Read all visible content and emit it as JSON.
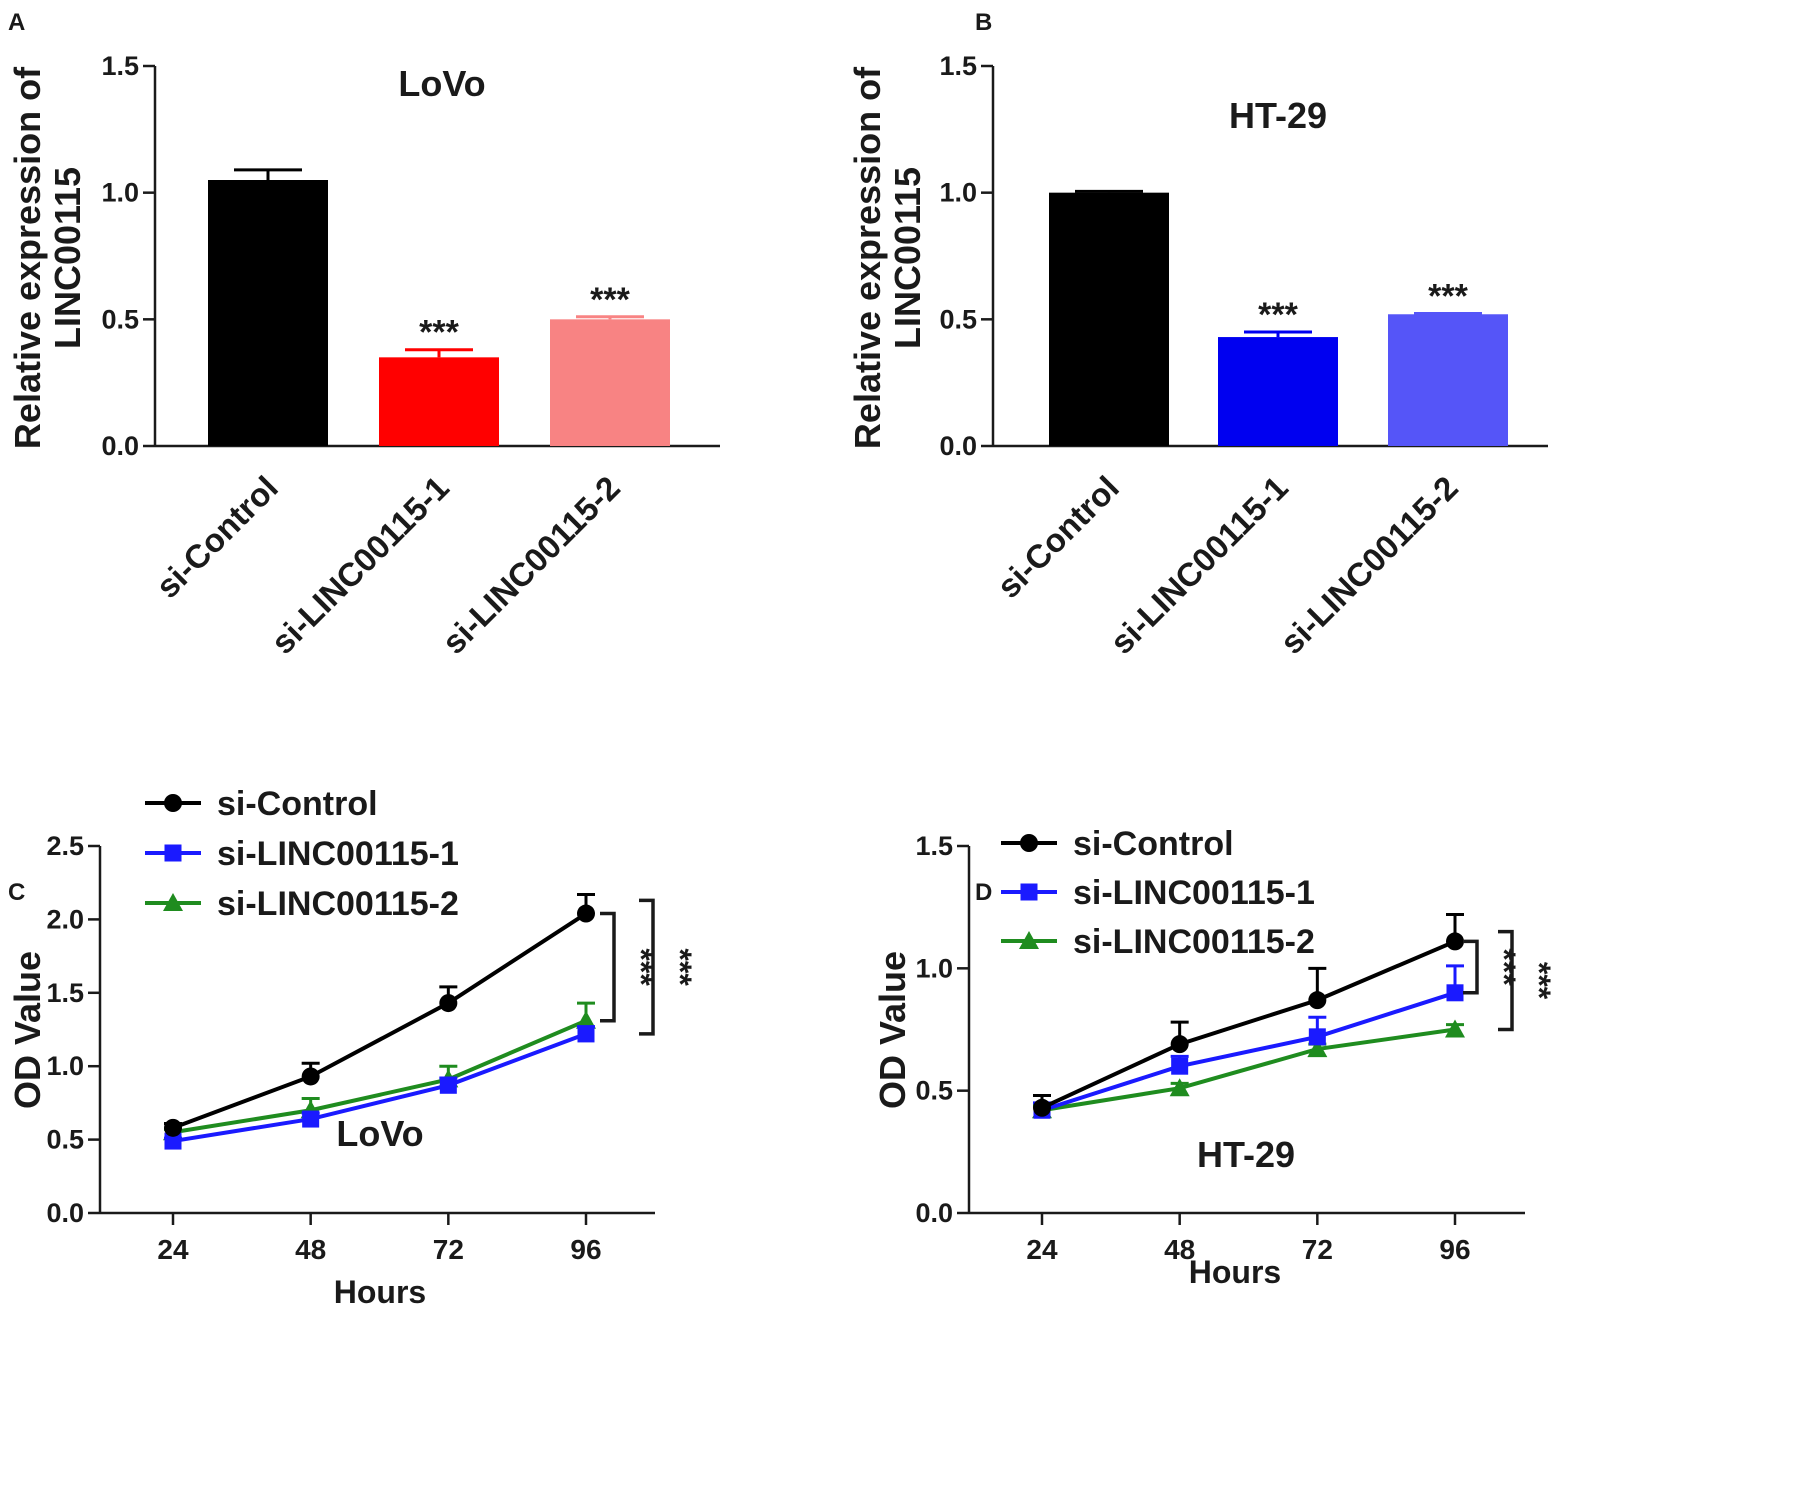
{
  "chart_data": [
    {
      "panel": "A",
      "type": "bar",
      "title": "LoVo",
      "ylabel": "Relative expression of LINC00115",
      "ylabel_lines": [
        "Relative expression of",
        "LINC00115"
      ],
      "xlabel": "",
      "categories": [
        "si-Control",
        "si-LINC00115-1",
        "si-LINC00115-2"
      ],
      "values": [
        1.05,
        0.35,
        0.5
      ],
      "errors": [
        0.04,
        0.03,
        0.01
      ],
      "significance": [
        "",
        "***",
        "***"
      ],
      "colors": [
        "#000000",
        "#ff0000",
        "#f88383"
      ],
      "ylim": [
        0,
        1.5
      ],
      "yticks": [
        "0.0",
        "0.5",
        "1.0",
        "1.5"
      ],
      "grid": false
    },
    {
      "panel": "B",
      "type": "bar",
      "title": "HT-29",
      "ylabel": "Relative expression of LINC00115",
      "ylabel_lines": [
        "Relative expression of",
        "LINC00115"
      ],
      "xlabel": "",
      "categories": [
        "si-Control",
        "si-LINC00115-1",
        "si-LINC00115-2"
      ],
      "values": [
        1.0,
        0.43,
        0.52
      ],
      "errors": [
        0.005,
        0.02,
        0.003
      ],
      "significance": [
        "",
        "***",
        "***"
      ],
      "colors": [
        "#000000",
        "#0000f0",
        "#5555f8"
      ],
      "ylim": [
        0,
        1.5
      ],
      "yticks": [
        "0.0",
        "0.5",
        "1.0",
        "1.5"
      ],
      "grid": false
    },
    {
      "panel": "C",
      "type": "line",
      "annotation": "LoVo",
      "xlabel": "Hours",
      "ylabel": "OD Value",
      "x": [
        24,
        48,
        72,
        96
      ],
      "xticks": [
        "24",
        "48",
        "72",
        "96"
      ],
      "ylim": [
        0,
        2.5
      ],
      "yticks": [
        "0.0",
        "0.5",
        "1.0",
        "1.5",
        "2.0",
        "2.5"
      ],
      "legend_position": "top-left",
      "grid": false,
      "series": [
        {
          "name": "si-Control",
          "values": [
            0.58,
            0.93,
            1.43,
            2.04
          ],
          "errors": [
            0.03,
            0.09,
            0.11,
            0.13
          ],
          "color": "#000000",
          "marker": "circle"
        },
        {
          "name": "si-LINC00115-1",
          "values": [
            0.49,
            0.64,
            0.87,
            1.22
          ],
          "errors": [
            0.02,
            0.04,
            0.05,
            0.05
          ],
          "color": "#1a1aff",
          "marker": "square"
        },
        {
          "name": "si-LINC00115-2",
          "values": [
            0.55,
            0.7,
            0.91,
            1.31
          ],
          "errors": [
            0.02,
            0.08,
            0.09,
            0.12
          ],
          "color": "#1f8c1f",
          "marker": "triangle"
        }
      ],
      "significance": [
        "***",
        "***"
      ]
    },
    {
      "panel": "D",
      "type": "line",
      "annotation": "HT-29",
      "xlabel": "Hours",
      "ylabel": "OD Value",
      "x": [
        24,
        48,
        72,
        96
      ],
      "xticks": [
        "24",
        "48",
        "72",
        "96"
      ],
      "ylim": [
        0,
        1.5
      ],
      "yticks": [
        "0.0",
        "0.5",
        "1.0",
        "1.5"
      ],
      "legend_position": "top-left",
      "grid": false,
      "series": [
        {
          "name": "si-Control",
          "values": [
            0.43,
            0.69,
            0.87,
            1.11
          ],
          "errors": [
            0.05,
            0.09,
            0.13,
            0.11
          ],
          "color": "#000000",
          "marker": "circle"
        },
        {
          "name": "si-LINC00115-1",
          "values": [
            0.42,
            0.6,
            0.72,
            0.9
          ],
          "errors": [
            0.03,
            0.04,
            0.08,
            0.11
          ],
          "color": "#1a1aff",
          "marker": "square"
        },
        {
          "name": "si-LINC00115-2",
          "values": [
            0.42,
            0.51,
            0.67,
            0.75
          ],
          "errors": [
            0.02,
            0.02,
            0.02,
            0.02
          ],
          "color": "#1f8c1f",
          "marker": "triangle"
        }
      ],
      "significance": [
        "***",
        "***"
      ]
    }
  ]
}
